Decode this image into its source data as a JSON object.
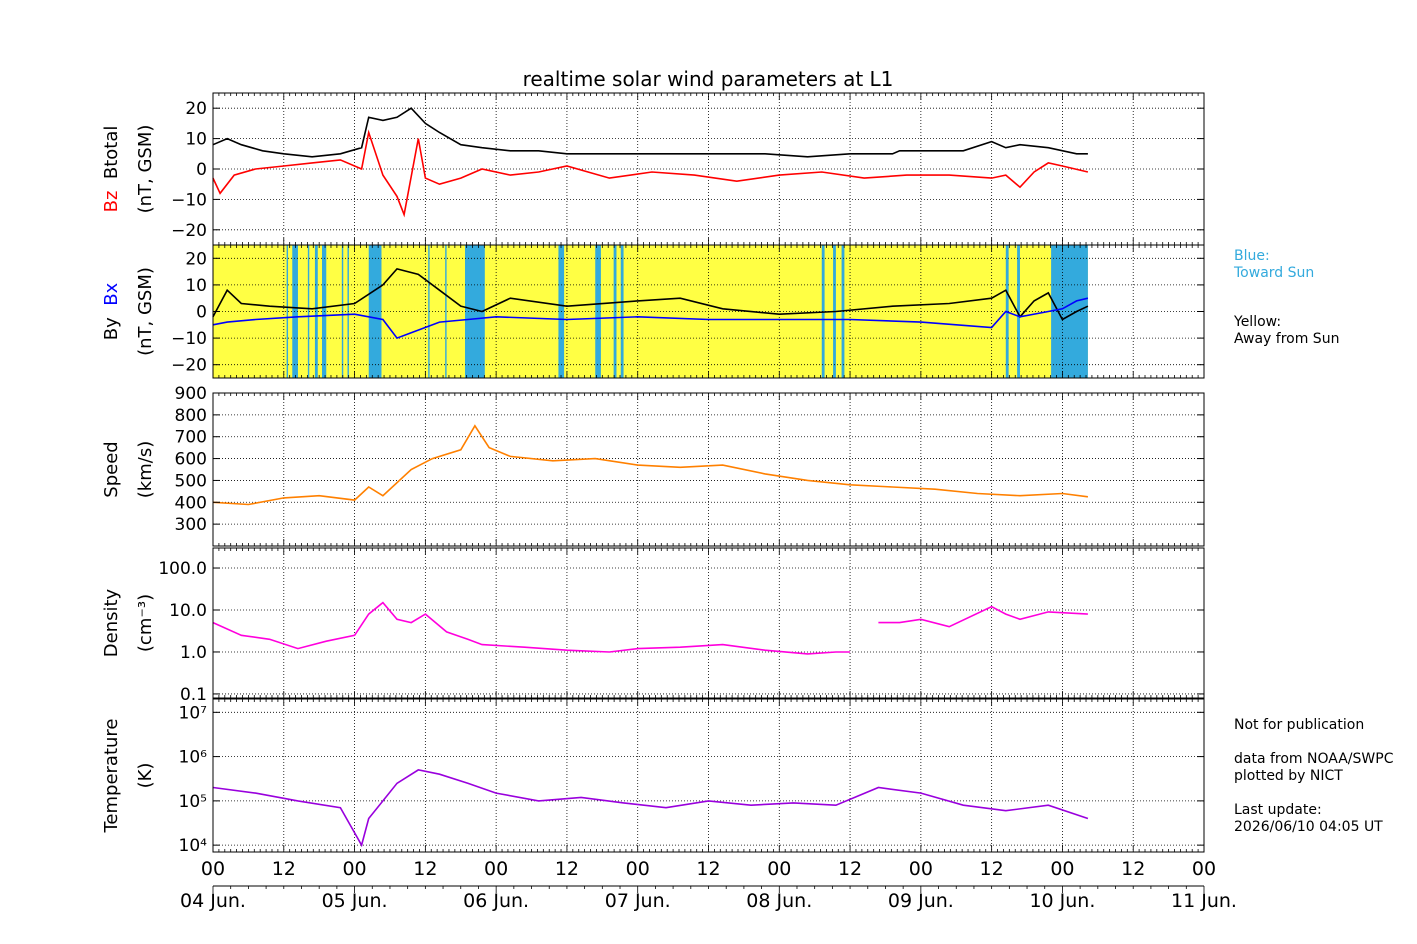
{
  "chart_data": {
    "type": "line",
    "title": "realtime solar wind parameters at L1",
    "x_time_ticks": [
      "00",
      "12",
      "00",
      "12",
      "00",
      "12",
      "00",
      "12",
      "00",
      "12",
      "00",
      "12",
      "00",
      "12",
      "00"
    ],
    "x_date_labels": [
      "04 Jun.",
      "05 Jun.",
      "06 Jun.",
      "07 Jun.",
      "08 Jun.",
      "09 Jun.",
      "10 Jun.",
      "11 Jun."
    ],
    "data_end_day": 6.18,
    "panels": [
      {
        "id": "bfield",
        "ylabel_parts": [
          "Bz",
          "Btotal"
        ],
        "ylabel_colors": [
          "#ff0000",
          "#000000"
        ],
        "yunits": "(nT, GSM)",
        "ylim": [
          -25,
          25
        ],
        "yticks": [
          20,
          10,
          0,
          -10,
          -20
        ],
        "ytick_labels": [
          "20",
          "10",
          "0",
          "−10",
          "−20"
        ],
        "series": [
          {
            "name": "Btotal",
            "color": "#000000",
            "x": [
              0,
              0.1,
              0.2,
              0.35,
              0.5,
              0.7,
              0.9,
              1.05,
              1.1,
              1.2,
              1.3,
              1.4,
              1.5,
              1.6,
              1.75,
              1.9,
              2.1,
              2.3,
              2.5,
              2.7,
              3.0,
              3.3,
              3.6,
              3.9,
              4.2,
              4.5,
              4.7,
              4.8,
              4.85,
              5.0,
              5.3,
              5.5,
              5.6,
              5.7,
              5.9,
              6.1,
              6.18
            ],
            "y": [
              8,
              10,
              8,
              6,
              5,
              4,
              5,
              7,
              17,
              16,
              17,
              20,
              15,
              12,
              8,
              7,
              6,
              6,
              5,
              5,
              5,
              5,
              5,
              5,
              4,
              5,
              5,
              5,
              6,
              6,
              6,
              9,
              7,
              8,
              7,
              5,
              5
            ]
          },
          {
            "name": "Bz",
            "color": "#ff0000",
            "x": [
              0,
              0.05,
              0.15,
              0.3,
              0.5,
              0.7,
              0.9,
              1.05,
              1.1,
              1.2,
              1.3,
              1.35,
              1.45,
              1.5,
              1.6,
              1.75,
              1.9,
              2.1,
              2.3,
              2.5,
              2.8,
              3.1,
              3.4,
              3.7,
              4.0,
              4.3,
              4.6,
              4.9,
              5.2,
              5.5,
              5.6,
              5.7,
              5.8,
              5.9,
              6.0,
              6.18
            ],
            "y": [
              -3,
              -8,
              -2,
              0,
              1,
              2,
              3,
              0,
              12,
              -2,
              -9,
              -15,
              10,
              -3,
              -5,
              -3,
              0,
              -2,
              -1,
              1,
              -3,
              -1,
              -2,
              -4,
              -2,
              -1,
              -3,
              -2,
              -2,
              -3,
              -2,
              -6,
              -1,
              2,
              1,
              -1
            ]
          }
        ]
      },
      {
        "id": "bxby",
        "ylabel_parts": [
          "By",
          "Bx"
        ],
        "ylabel_colors": [
          "#000000",
          "#0000ff"
        ],
        "yunits": "(nT, GSM)",
        "ylim": [
          -25,
          25
        ],
        "yticks": [
          20,
          10,
          0,
          -10,
          -20
        ],
        "ytick_labels": [
          "20",
          "10",
          "0",
          "−10",
          "−20"
        ],
        "sector_background": {
          "away_color": "#ffff44",
          "toward_color": "#33aadd",
          "toward_intervals": [
            [
              0.52,
              0.53
            ],
            [
              0.56,
              0.6
            ],
            [
              0.67,
              0.68
            ],
            [
              0.72,
              0.74
            ],
            [
              0.77,
              0.8
            ],
            [
              0.91,
              0.92
            ],
            [
              0.95,
              0.96
            ],
            [
              1.1,
              1.19
            ],
            [
              1.52,
              1.53
            ],
            [
              1.64,
              1.65
            ],
            [
              1.78,
              1.92
            ],
            [
              2.44,
              2.48
            ],
            [
              2.7,
              2.74
            ],
            [
              2.83,
              2.85
            ],
            [
              2.88,
              2.9
            ],
            [
              4.3,
              4.32
            ],
            [
              4.38,
              4.4
            ],
            [
              4.44,
              4.46
            ],
            [
              5.6,
              5.62
            ],
            [
              5.68,
              5.7
            ],
            [
              5.92,
              6.18
            ]
          ]
        },
        "series": [
          {
            "name": "By",
            "color": "#000000",
            "x": [
              0,
              0.1,
              0.2,
              0.4,
              0.7,
              1.0,
              1.2,
              1.3,
              1.45,
              1.6,
              1.75,
              1.9,
              2.1,
              2.5,
              3.0,
              3.3,
              3.6,
              4.0,
              4.4,
              4.8,
              5.2,
              5.5,
              5.6,
              5.7,
              5.8,
              5.9,
              6.0,
              6.1,
              6.18
            ],
            "y": [
              -2,
              8,
              3,
              2,
              1,
              3,
              10,
              16,
              14,
              8,
              2,
              0,
              5,
              2,
              4,
              5,
              1,
              -1,
              0,
              2,
              3,
              5,
              8,
              -2,
              4,
              7,
              -3,
              0,
              2
            ]
          },
          {
            "name": "Bx",
            "color": "#0000ff",
            "x": [
              0,
              0.1,
              0.3,
              0.6,
              1.0,
              1.2,
              1.3,
              1.4,
              1.6,
              1.8,
              2.0,
              2.5,
              3.0,
              3.5,
              4.0,
              4.5,
              5.0,
              5.5,
              5.6,
              5.7,
              5.9,
              6.0,
              6.1,
              6.18
            ],
            "y": [
              -5,
              -4,
              -3,
              -2,
              -1,
              -3,
              -10,
              -8,
              -4,
              -3,
              -2,
              -3,
              -2,
              -3,
              -3,
              -3,
              -4,
              -6,
              0,
              -2,
              0,
              1,
              4,
              5
            ]
          }
        ]
      },
      {
        "id": "speed",
        "ylabel_parts": [
          "Speed"
        ],
        "yunits": "(km/s)",
        "ylim": [
          200,
          900
        ],
        "yticks": [
          900,
          800,
          700,
          600,
          500,
          400,
          300
        ],
        "ytick_labels": [
          "900",
          "800",
          "700",
          "600",
          "500",
          "400",
          "300"
        ],
        "series": [
          {
            "name": "Speed",
            "color": "#ff8000",
            "x": [
              0,
              0.25,
              0.5,
              0.75,
              1.0,
              1.1,
              1.2,
              1.4,
              1.55,
              1.75,
              1.85,
              1.95,
              2.1,
              2.4,
              2.7,
              3.0,
              3.3,
              3.6,
              3.9,
              4.2,
              4.5,
              4.8,
              5.1,
              5.4,
              5.7,
              6.0,
              6.18
            ],
            "y": [
              400,
              390,
              420,
              430,
              410,
              470,
              430,
              550,
              600,
              640,
              750,
              650,
              610,
              590,
              600,
              570,
              560,
              570,
              530,
              500,
              480,
              470,
              460,
              440,
              430,
              440,
              425
            ]
          }
        ]
      },
      {
        "id": "density",
        "ylabel_parts": [
          "Density"
        ],
        "yunits": "(cm⁻³)",
        "scale": "log",
        "ylim": [
          0.08,
          300
        ],
        "yticks": [
          100,
          10,
          1,
          0.1
        ],
        "ytick_labels": [
          "100.0",
          "10.0",
          "1.0",
          "0.1"
        ],
        "series": [
          {
            "name": "Density",
            "color": "#ff00dd",
            "x": [
              0,
              0.2,
              0.4,
              0.6,
              0.8,
              1.0,
              1.1,
              1.2,
              1.3,
              1.4,
              1.5,
              1.65,
              1.8,
              1.9,
              2.2,
              2.5,
              2.8,
              3.0,
              3.3,
              3.6,
              3.9,
              4.2,
              4.4,
              4.5,
              4.6,
              4.7,
              4.85,
              5.0,
              5.2,
              5.5,
              5.6,
              5.7,
              5.9,
              6.18
            ],
            "y": [
              5,
              2.5,
              2,
              1.2,
              1.8,
              2.5,
              8,
              15,
              6,
              5,
              8,
              3,
              2,
              1.5,
              1.3,
              1.1,
              1,
              1.2,
              1.3,
              1.5,
              1.1,
              0.9,
              1,
              1,
              null,
              5,
              5,
              6,
              4,
              12,
              8,
              6,
              9,
              8
            ]
          }
        ]
      },
      {
        "id": "temperature",
        "ylabel_parts": [
          "Temperature"
        ],
        "yunits": "(K)",
        "scale": "log",
        "ylim": [
          7000,
          20000000
        ],
        "yticks": [
          10000000,
          1000000,
          100000,
          10000
        ],
        "ytick_labels": [
          "10⁷",
          "10⁶",
          "10⁵",
          "10⁴"
        ],
        "series": [
          {
            "name": "Temperature",
            "color": "#9900dd",
            "x": [
              0,
              0.3,
              0.6,
              0.9,
              1.05,
              1.1,
              1.2,
              1.3,
              1.45,
              1.6,
              1.8,
              2.0,
              2.3,
              2.6,
              2.9,
              3.2,
              3.5,
              3.8,
              4.1,
              4.4,
              4.7,
              5.0,
              5.3,
              5.6,
              5.9,
              6.18
            ],
            "y": [
              200000,
              150000,
              100000,
              70000,
              10000,
              40000,
              100000,
              250000,
              500000,
              400000,
              250000,
              150000,
              100000,
              120000,
              90000,
              70000,
              100000,
              80000,
              90000,
              80000,
              200000,
              150000,
              80000,
              60000,
              80000,
              40000
            ]
          }
        ]
      }
    ]
  },
  "side_notes": {
    "blue_label": "Blue:",
    "blue_text": "Toward Sun",
    "blue_color": "#33aadd",
    "yellow_label": "Yellow:",
    "yellow_text": "Away from Sun",
    "not_for_publication": "Not for publication",
    "data_source": "data from NOAA/SWPC",
    "plotted_by": "plotted by NICT",
    "last_update_label": "Last update:",
    "last_update_value": "2026/06/10 04:05 UT"
  }
}
